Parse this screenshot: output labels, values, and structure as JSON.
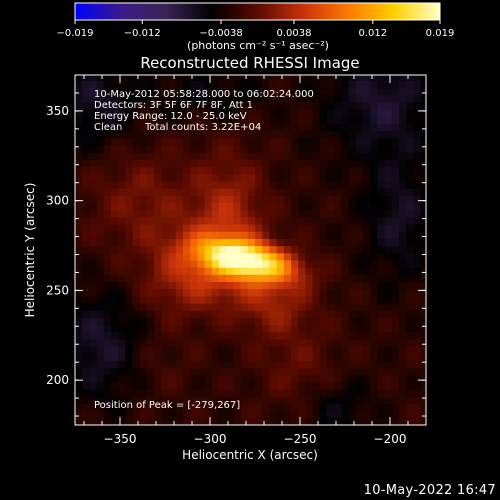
{
  "chart_data": {
    "type": "heatmap",
    "title": "Reconstructed RHESSI Image",
    "xlabel": "Heliocentric X (arcsec)",
    "ylabel": "Heliocentric Y (arcsec)",
    "xlim": [
      -375,
      -180
    ],
    "ylim": [
      175,
      370
    ],
    "x_ticks": [
      -350,
      -300,
      -250,
      -200
    ],
    "x_tick_labels": [
      "−350",
      "−300",
      "−250",
      "−200"
    ],
    "y_ticks": [
      200,
      250,
      300,
      350
    ],
    "y_tick_labels": [
      "200",
      "250",
      "300",
      "350"
    ],
    "colorbar": {
      "range": [
        -0.019,
        0.019
      ],
      "ticks": [
        -0.019,
        -0.012,
        -0.0038,
        0.0038,
        0.012,
        0.019
      ],
      "tick_labels": [
        "−0.019",
        "−0.012",
        "−0.0038",
        "0.0038",
        "0.012",
        "0.019"
      ],
      "units_label": "(photons cm⁻² s⁻¹ asec⁻²)",
      "colormap": [
        "#0000ff",
        "#3a1a8a",
        "#3a2255",
        "#000000",
        "#5a0a00",
        "#c8320a",
        "#ff7a00",
        "#ffd000",
        "#ffffc8"
      ]
    },
    "peak": {
      "x": -279,
      "y": 267,
      "value": 0.019
    },
    "sources": [
      {
        "x": -279,
        "y": 267,
        "sx": 18,
        "sy": 7,
        "amp": 0.019,
        "rot_deg": -12
      },
      {
        "x": -305,
        "y": 262,
        "sx": 22,
        "sy": 16,
        "amp": 0.007,
        "rot_deg": 20
      },
      {
        "x": -290,
        "y": 296,
        "sx": 14,
        "sy": 22,
        "amp": 0.005,
        "rot_deg": 0
      },
      {
        "x": -265,
        "y": 245,
        "sx": 16,
        "sy": 14,
        "amp": 0.005,
        "rot_deg": -30
      },
      {
        "x": -338,
        "y": 300,
        "sx": 20,
        "sy": 20,
        "amp": 0.0035,
        "rot_deg": 0
      },
      {
        "x": -250,
        "y": 205,
        "sx": 16,
        "sy": 16,
        "amp": 0.0025,
        "rot_deg": 0
      },
      {
        "x": -330,
        "y": 210,
        "sx": 14,
        "sy": 14,
        "amp": 0.0015,
        "rot_deg": 0
      }
    ],
    "negative_regions": [
      {
        "x": -365,
        "y": 355,
        "sx": 18,
        "sy": 18,
        "amp": -0.004
      },
      {
        "x": -205,
        "y": 355,
        "sx": 22,
        "sy": 22,
        "amp": -0.0045
      },
      {
        "x": -195,
        "y": 290,
        "sx": 14,
        "sy": 24,
        "amp": -0.004
      },
      {
        "x": -360,
        "y": 220,
        "sx": 18,
        "sy": 22,
        "amp": -0.0045
      },
      {
        "x": -230,
        "y": 185,
        "sx": 14,
        "sy": 12,
        "amp": -0.003
      },
      {
        "x": -300,
        "y": 360,
        "sx": 22,
        "sy": 10,
        "amp": -0.0025
      }
    ]
  },
  "annotations": {
    "time_range": "10-May-2012 05:58:28.000 to 06:02:24.000",
    "detectors": "Detectors: 3F 5F 6F 7F 8F, Att 1",
    "energy_range": "Energy Range: 12.0 - 25.0 keV",
    "method": "Clean",
    "total_counts": "Total counts: 3.22E+04",
    "peak_position": "Position of Peak = [-279,267]"
  },
  "footer": {
    "timestamp": "10-May-2022 16:47"
  }
}
